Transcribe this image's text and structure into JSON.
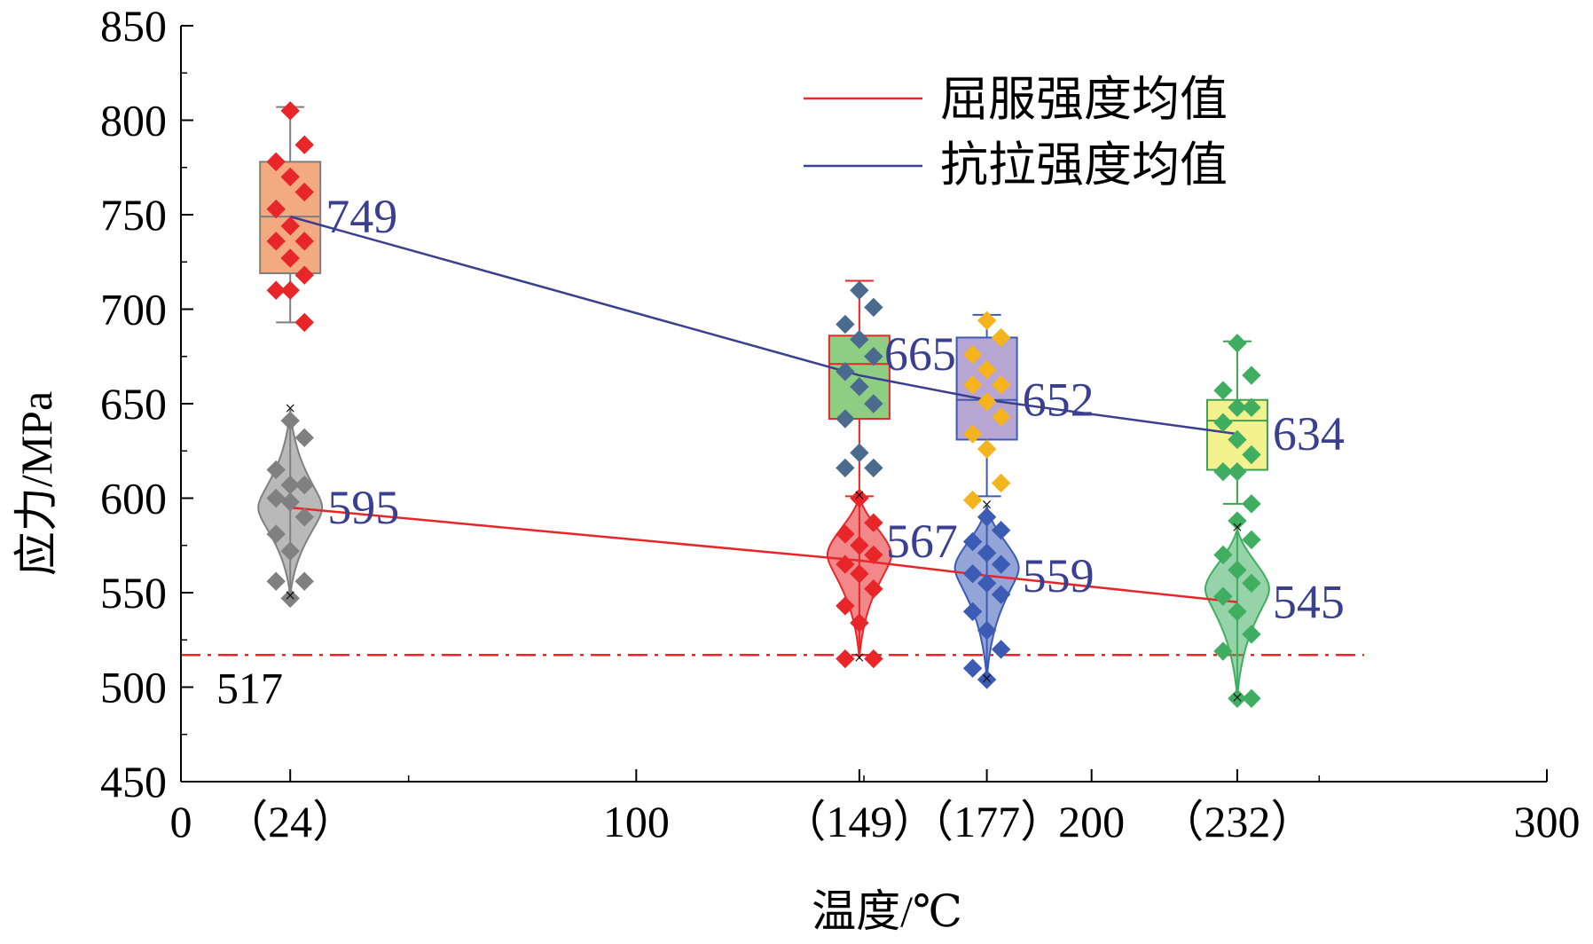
{
  "chart_data": {
    "type": "box",
    "title": "",
    "xlabel": "温度/℃",
    "ylabel": "应力/MPa",
    "xlim": [
      0,
      300
    ],
    "ylim": [
      450,
      850
    ],
    "x_ticks": [
      0,
      100,
      200,
      300
    ],
    "y_ticks": [
      450,
      500,
      550,
      600,
      650,
      700,
      750,
      800,
      850
    ],
    "x_tick_labels": [
      "0",
      "100",
      "200",
      "300"
    ],
    "y_tick_labels": [
      "450",
      "500",
      "550",
      "600",
      "650",
      "700",
      "750",
      "800",
      "850"
    ],
    "temperature_labels": [
      {
        "x": 24,
        "text": "（24）"
      },
      {
        "x": 149,
        "text": "（149）"
      },
      {
        "x": 177,
        "text": "（177）"
      },
      {
        "x": 232,
        "text": "（232）"
      }
    ],
    "legend": {
      "position": "top-right",
      "entries": [
        {
          "label": "屈服强度均值",
          "color": "#e8262a"
        },
        {
          "label": "抗拉强度均值",
          "color": "#3b3f8f"
        }
      ]
    },
    "series": [
      {
        "name": "屈服强度均值",
        "color": "#e8262a",
        "x": [
          24,
          149,
          177,
          232
        ],
        "means": [
          595,
          567,
          559,
          545
        ],
        "labels": [
          "595",
          "567",
          "559",
          "545"
        ]
      },
      {
        "name": "抗拉强度均值",
        "color": "#3b3f8f",
        "x": [
          24,
          149,
          177,
          232
        ],
        "means": [
          749,
          665,
          652,
          634
        ],
        "labels": [
          "749",
          "665",
          "652",
          "634"
        ]
      }
    ],
    "boxes": [
      {
        "x": 24,
        "q1": 719,
        "median": 749,
        "q3": 778,
        "whisker_low": 693,
        "whisker_high": 807,
        "fill": "#f4aa80",
        "stroke": "#7f7f7f",
        "point_color": "#e8262a",
        "points": [
          805,
          787,
          778,
          770,
          762,
          753,
          744,
          736,
          736,
          727,
          718,
          710,
          710,
          693
        ]
      },
      {
        "x": 149,
        "q1": 642,
        "median": 671,
        "q3": 686,
        "whisker_low": 601,
        "whisker_high": 715,
        "fill": "#8ece82",
        "stroke": "#e8262a",
        "point_color": "#4a6a8e",
        "points": [
          710,
          701,
          692,
          684,
          675,
          667,
          659,
          650,
          642,
          624,
          616,
          616
        ]
      },
      {
        "x": 177,
        "q1": 631,
        "median": 652,
        "q3": 685,
        "whisker_low": 601,
        "whisker_high": 697,
        "fill": "#b7a6d4",
        "stroke": "#3b5bb5",
        "point_color": "#f5b31d",
        "points": [
          694,
          685,
          676,
          668,
          660,
          660,
          651,
          643,
          634,
          626,
          608,
          599
        ]
      },
      {
        "x": 232,
        "q1": 615,
        "median": 641,
        "q3": 652,
        "whisker_low": 597,
        "whisker_high": 683,
        "fill": "#f3f28e",
        "stroke": "#3f9f52",
        "point_color": "#3fae60",
        "points": [
          682,
          665,
          657,
          648,
          648,
          640,
          631,
          623,
          614,
          614,
          597
        ]
      }
    ],
    "violins": [
      {
        "x": 24,
        "center": 595,
        "low": 548,
        "high": 647,
        "color": "#808080",
        "point_color": "#808080",
        "points": [
          641,
          632,
          615,
          607,
          607,
          600,
          598,
          590,
          581,
          572,
          556,
          556,
          547
        ]
      },
      {
        "x": 149,
        "center": 570,
        "low": 515,
        "high": 601,
        "color": "#e8262a",
        "point_color": "#e8262a",
        "points": [
          600,
          587,
          581,
          575,
          570,
          565,
          560,
          552,
          543,
          534,
          515,
          515
        ]
      },
      {
        "x": 177,
        "center": 563,
        "low": 504,
        "high": 596,
        "color": "#3b5bb5",
        "point_color": "#3b5bb5",
        "points": [
          590,
          583,
          577,
          571,
          565,
          560,
          555,
          549,
          540,
          530,
          520,
          510,
          504
        ]
      },
      {
        "x": 232,
        "center": 552,
        "low": 494,
        "high": 584,
        "color": "#3fae60",
        "point_color": "#3fae60",
        "points": [
          588,
          578,
          570,
          562,
          555,
          548,
          540,
          528,
          519,
          494,
          494
        ]
      }
    ],
    "reference_line": {
      "value": 517,
      "label": "517",
      "color": "#e8262a",
      "style": "dash-dot"
    }
  }
}
